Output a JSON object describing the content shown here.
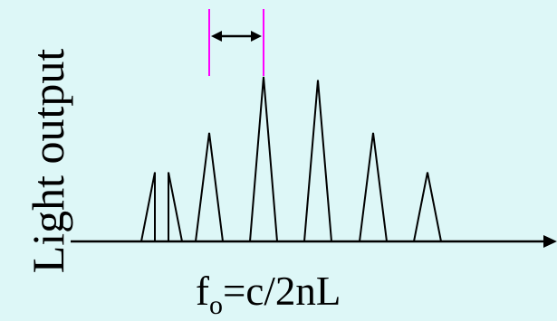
{
  "y_axis_label": "Light output",
  "formula": {
    "symbol": "f",
    "subscript": "o",
    "expression": "=c/2nL"
  },
  "colors": {
    "background": "#ddf7f7",
    "line": "#000000",
    "marker": "#ff00ff"
  },
  "peaks": [
    {
      "id": "half-peak-left",
      "relative_height": 0.42
    },
    {
      "id": "half-peak-right",
      "relative_height": 0.42
    },
    {
      "id": "peak-1",
      "relative_height": 0.66
    },
    {
      "id": "peak-2",
      "relative_height": 1.0
    },
    {
      "id": "peak-3",
      "relative_height": 0.98
    },
    {
      "id": "peak-4",
      "relative_height": 0.66
    },
    {
      "id": "peak-5",
      "relative_height": 0.42
    }
  ]
}
